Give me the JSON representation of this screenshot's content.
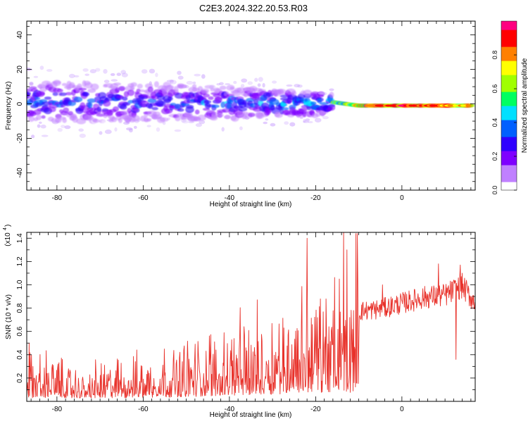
{
  "page": {
    "title": "C2E3.2024.322.20.53.R03"
  },
  "chart_data": [
    {
      "type": "heatmap",
      "xlabel": "Height of straight line (km)",
      "ylabel": "Frequency (Hz)",
      "xlim": [
        -87,
        17
      ],
      "ylim": [
        -50,
        48
      ],
      "x_ticks": [
        -80,
        -60,
        -40,
        -20,
        0
      ],
      "y_ticks": [
        -40,
        -20,
        0,
        20,
        40
      ],
      "x_tick_labels": [
        "-80",
        "-60",
        "-40",
        "-20",
        "0"
      ],
      "y_tick_labels": [
        "-40",
        "-20",
        "0",
        "20",
        "40"
      ],
      "colorbar": {
        "label": "Normalized spectral amplitude",
        "range": [
          0,
          1
        ],
        "ticks": [
          0,
          0.2,
          0.4,
          0.6,
          0.8
        ],
        "tick_labels": [
          "0.0",
          "0.2",
          "0.4",
          "0.6",
          "0.8"
        ],
        "colormap": [
          "#ffffff",
          "#c080ff",
          "#7f00ff",
          "#2f00ff",
          "#0060ff",
          "#00e0ff",
          "#00ff60",
          "#a0ff00",
          "#ffff00",
          "#ff8000",
          "#ff0000",
          "#ff0080"
        ]
      },
      "band": {
        "x_start": -87,
        "x_end": 16,
        "center_freq": [
          [
            -87,
            1
          ],
          [
            -60,
            1
          ],
          [
            -40,
            0.5
          ],
          [
            -20,
            0
          ],
          [
            -16,
            1
          ],
          [
            -10,
            -1
          ],
          [
            0,
            -1
          ],
          [
            16,
            -1
          ]
        ],
        "half_width": [
          [
            -87,
            12
          ],
          [
            -60,
            11
          ],
          [
            -40,
            9
          ],
          [
            -20,
            7
          ],
          [
            -14,
            3
          ],
          [
            -8,
            2
          ],
          [
            16,
            2
          ]
        ],
        "peak_amplitude": [
          [
            -87,
            0.35
          ],
          [
            -60,
            0.35
          ],
          [
            -40,
            0.38
          ],
          [
            -22,
            0.45
          ],
          [
            -16,
            0.55
          ],
          [
            -8,
            0.9
          ],
          [
            0,
            1
          ],
          [
            16,
            0.8
          ]
        ]
      }
    },
    {
      "type": "line",
      "xlabel": "Height of straight line (km)",
      "ylabel": "SNR (10 * v/v)",
      "y_multiplier": "(x10",
      "y_multiplier_exp": "4",
      "xlim": [
        -87,
        17
      ],
      "ylim": [
        0,
        1.45
      ],
      "x_ticks": [
        -80,
        -60,
        -40,
        -20,
        0
      ],
      "y_ticks": [
        0.2,
        0.4,
        0.6,
        0.8,
        1.0,
        1.2,
        1.4
      ],
      "x_tick_labels": [
        "-80",
        "-60",
        "-40",
        "-20",
        "0"
      ],
      "y_tick_labels": [
        "0.2",
        "0.4",
        "0.6",
        "0.8",
        "1.0",
        "1.2",
        "1.4"
      ],
      "color": "#e8312a",
      "envelope": [
        [
          -87,
          0.2
        ],
        [
          -80,
          0.2
        ],
        [
          -75,
          0.12
        ],
        [
          -70,
          0.17
        ],
        [
          -60,
          0.2
        ],
        [
          -50,
          0.25
        ],
        [
          -40,
          0.33
        ],
        [
          -30,
          0.4
        ],
        [
          -20,
          0.5
        ],
        [
          -12,
          0.5
        ],
        [
          -10,
          0.78
        ],
        [
          -5,
          0.8
        ],
        [
          0,
          0.85
        ],
        [
          5,
          0.9
        ],
        [
          10,
          0.92
        ],
        [
          14,
          1.0
        ],
        [
          17,
          0.85
        ]
      ],
      "spikes": [
        [
          -86.5,
          0.5
        ],
        [
          -22,
          1.4
        ],
        [
          -13.5,
          1.45
        ],
        [
          -12.8,
          1.3
        ],
        [
          -14.5,
          1.05
        ],
        [
          -4.5,
          1.0
        ],
        [
          8.5,
          1.18
        ],
        [
          13.5,
          1.17
        ],
        [
          12.5,
          0.36
        ]
      ]
    }
  ]
}
